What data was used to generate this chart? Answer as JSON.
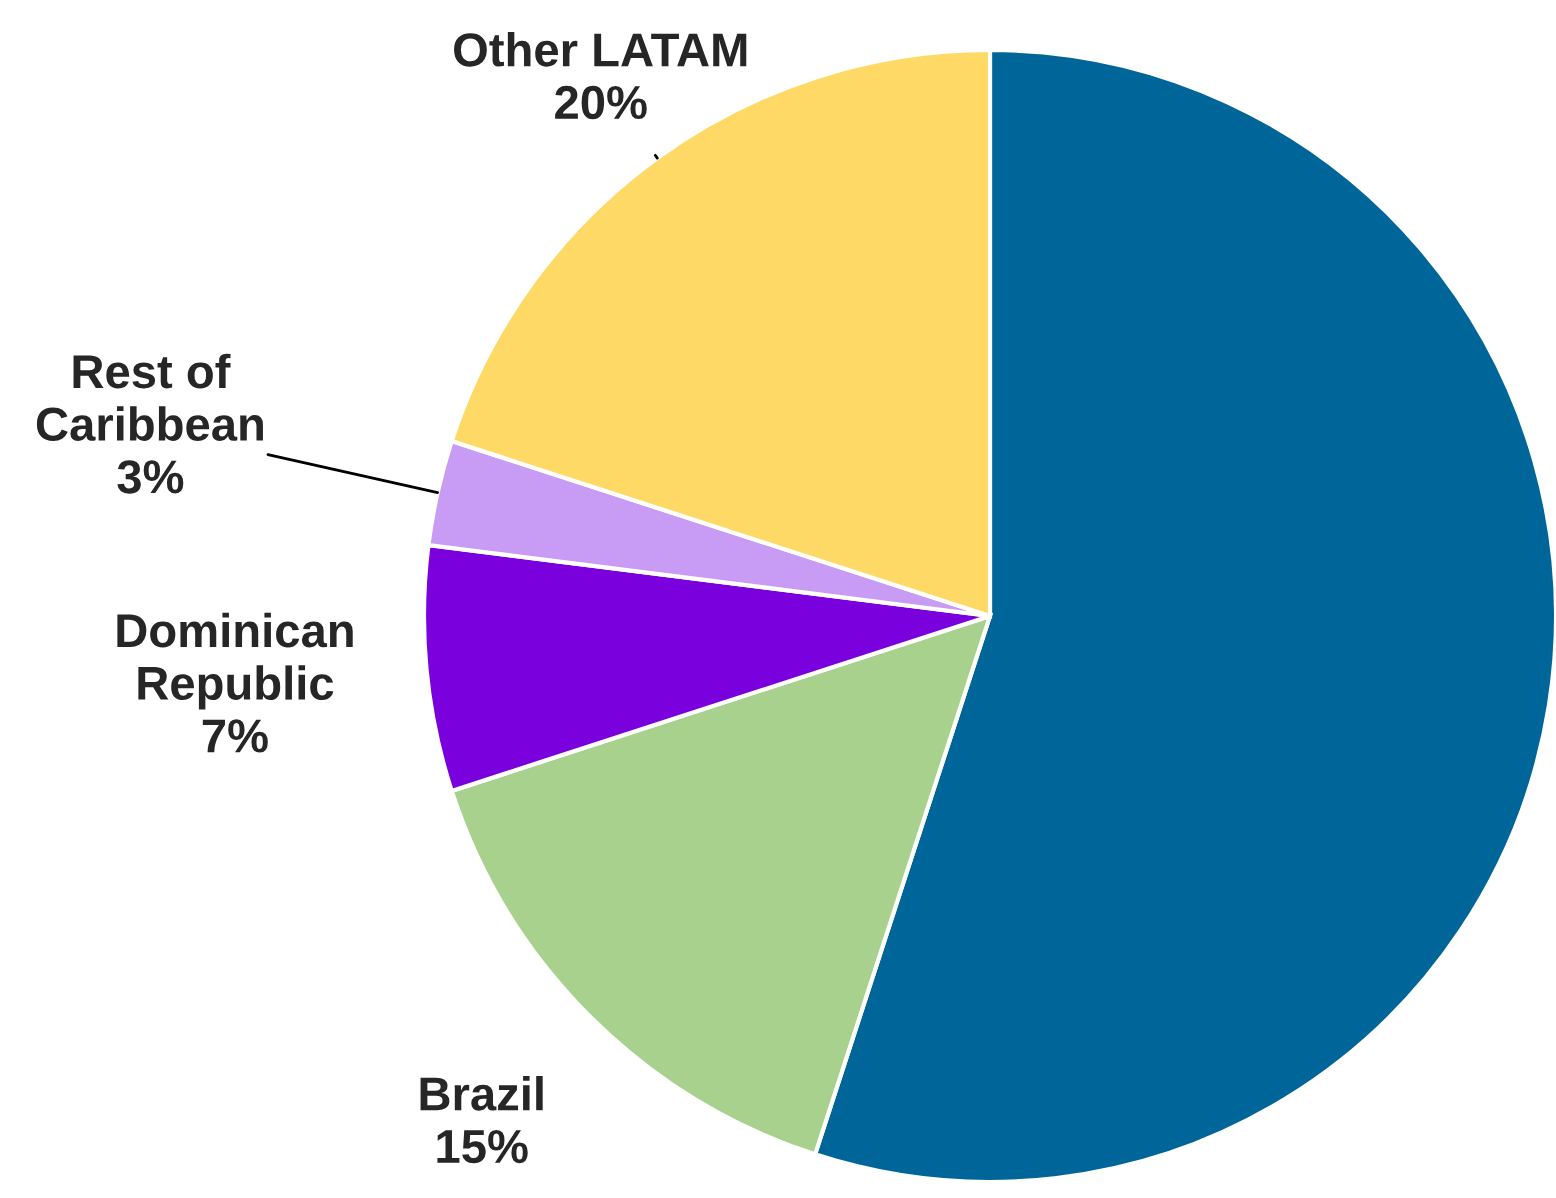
{
  "chart_data": {
    "type": "pie",
    "categories": [
      null,
      "Brazil",
      "Dominican\nRepublic",
      "Rest of\nCaribbean",
      "Other LATAM"
    ],
    "values": [
      55,
      15,
      7,
      3,
      20
    ],
    "colors": [
      "#006699",
      "#a9d18e",
      "#7a00dd",
      "#c89bf5",
      "#ffd966"
    ],
    "value_labels": [
      null,
      "15%",
      "7%",
      "3%",
      "20%"
    ]
  }
}
